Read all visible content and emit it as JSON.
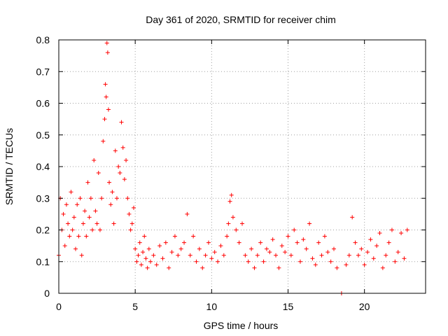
{
  "chart_data": {
    "type": "scatter",
    "title": "Day 361 of 2020, SRMTID for receiver chim",
    "xlabel": "GPS time / hours",
    "ylabel": "SRMTID / TECUs",
    "xlim": [
      0,
      24
    ],
    "ylim": [
      0,
      0.8
    ],
    "xticks": [
      0,
      5,
      10,
      15,
      20
    ],
    "xtick_labels": [
      "0",
      "5",
      "10",
      "15",
      "20"
    ],
    "yticks": [
      0,
      0.1,
      0.2,
      0.3,
      0.4,
      0.5,
      0.6,
      0.7,
      0.8
    ],
    "ytick_labels": [
      "0",
      "0.1",
      "0.2",
      "0.3",
      "0.4",
      "0.5",
      "0.6",
      "0.7",
      "0.8"
    ],
    "grid": true,
    "marker": "plus",
    "color": "#ff0000",
    "series": [
      {
        "name": "SRMTID",
        "x": [
          0.0,
          0.1,
          0.2,
          0.3,
          0.4,
          0.5,
          0.6,
          0.7,
          0.8,
          0.9,
          1.0,
          1.1,
          1.2,
          1.3,
          1.4,
          1.5,
          1.6,
          1.7,
          1.8,
          1.9,
          2.0,
          2.1,
          2.2,
          2.3,
          2.4,
          2.5,
          2.6,
          2.7,
          2.8,
          2.9,
          3.0,
          3.05,
          3.1,
          3.15,
          3.2,
          3.25,
          3.3,
          3.4,
          3.5,
          3.6,
          3.7,
          3.8,
          3.9,
          4.0,
          4.1,
          4.2,
          4.3,
          4.4,
          4.5,
          4.6,
          4.7,
          4.8,
          4.9,
          5.0,
          5.1,
          5.2,
          5.3,
          5.4,
          5.5,
          5.6,
          5.7,
          5.8,
          5.9,
          6.0,
          6.2,
          6.4,
          6.6,
          6.8,
          7.0,
          7.2,
          7.4,
          7.6,
          7.8,
          8.0,
          8.2,
          8.4,
          8.6,
          8.8,
          9.0,
          9.2,
          9.4,
          9.6,
          9.8,
          10.0,
          10.2,
          10.4,
          10.6,
          10.8,
          11.0,
          11.1,
          11.2,
          11.3,
          11.4,
          11.6,
          11.8,
          12.0,
          12.2,
          12.4,
          12.6,
          12.8,
          13.0,
          13.2,
          13.4,
          13.6,
          13.8,
          14.0,
          14.2,
          14.4,
          14.6,
          14.8,
          15.0,
          15.2,
          15.4,
          15.6,
          15.8,
          16.0,
          16.2,
          16.4,
          16.6,
          16.8,
          17.0,
          17.2,
          17.4,
          17.6,
          17.8,
          18.0,
          18.2,
          18.5,
          18.8,
          19.0,
          19.2,
          19.4,
          19.6,
          19.8,
          20.0,
          20.2,
          20.4,
          20.6,
          20.8,
          21.0,
          21.2,
          21.4,
          21.6,
          21.8,
          22.0,
          22.2,
          22.4,
          22.6,
          22.8
        ],
        "y": [
          0.12,
          0.3,
          0.2,
          0.25,
          0.15,
          0.28,
          0.22,
          0.18,
          0.32,
          0.2,
          0.24,
          0.14,
          0.28,
          0.18,
          0.3,
          0.12,
          0.22,
          0.26,
          0.18,
          0.35,
          0.24,
          0.3,
          0.2,
          0.42,
          0.26,
          0.22,
          0.38,
          0.2,
          0.3,
          0.48,
          0.55,
          0.66,
          0.62,
          0.79,
          0.76,
          0.58,
          0.35,
          0.28,
          0.32,
          0.22,
          0.45,
          0.3,
          0.4,
          0.38,
          0.54,
          0.46,
          0.36,
          0.42,
          0.3,
          0.25,
          0.2,
          0.22,
          0.27,
          0.14,
          0.1,
          0.12,
          0.16,
          0.09,
          0.13,
          0.18,
          0.11,
          0.08,
          0.14,
          0.1,
          0.12,
          0.09,
          0.15,
          0.11,
          0.16,
          0.08,
          0.13,
          0.18,
          0.12,
          0.14,
          0.16,
          0.25,
          0.12,
          0.18,
          0.1,
          0.14,
          0.08,
          0.12,
          0.16,
          0.11,
          0.13,
          0.1,
          0.15,
          0.12,
          0.18,
          0.22,
          0.29,
          0.31,
          0.24,
          0.2,
          0.16,
          0.22,
          0.12,
          0.1,
          0.14,
          0.08,
          0.12,
          0.16,
          0.1,
          0.14,
          0.13,
          0.17,
          0.12,
          0.08,
          0.15,
          0.13,
          0.18,
          0.12,
          0.2,
          0.16,
          0.1,
          0.17,
          0.14,
          0.22,
          0.11,
          0.09,
          0.16,
          0.12,
          0.18,
          0.13,
          0.1,
          0.14,
          0.08,
          0.0,
          0.09,
          0.12,
          0.24,
          0.16,
          0.12,
          0.14,
          0.09,
          0.13,
          0.17,
          0.11,
          0.15,
          0.19,
          0.08,
          0.12,
          0.16,
          0.2,
          0.1,
          0.13,
          0.19,
          0.11,
          0.2
        ]
      }
    ]
  }
}
